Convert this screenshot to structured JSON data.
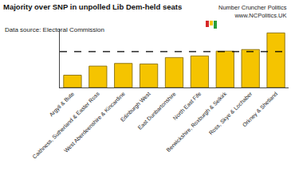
{
  "chart_data": {
    "type": "bar",
    "title": "Majority over SNP in unpolled Lib Dem-held seats",
    "subtitle": "Data source: Electoral Commission",
    "annotations": [
      "Number Cruncher Politics",
      "www.NCPolitics.UK"
    ],
    "categories": [
      "Argyll & Bute",
      "Caithness, Sutherland & Easter Ross",
      "West Aberdeenshire & Kincardine",
      "Edinburgh West",
      "East Dunbartonshire",
      "North East Fife",
      "Berwickshire, Roxburgh & Selkirk",
      "Ross, Skye & Lochaber",
      "Orkney & Shetland"
    ],
    "values": [
      11.5,
      20,
      22.5,
      22,
      28,
      29.5,
      34,
      35.5,
      51
    ],
    "color": "#f5c400",
    "threshold": 33.5,
    "ylim": [
      0,
      55
    ],
    "yticks": [],
    "grid": false,
    "tick_labels": "x"
  }
}
